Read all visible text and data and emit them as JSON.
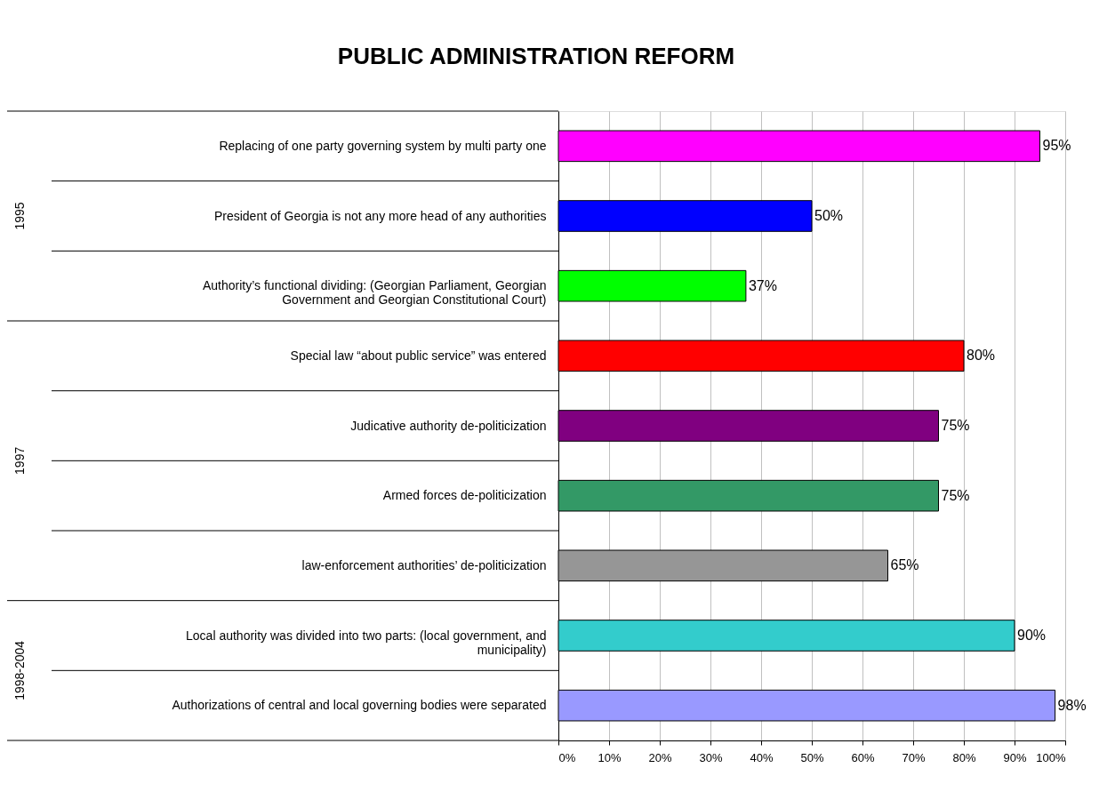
{
  "chart_data": {
    "type": "bar",
    "orientation": "horizontal",
    "title": "PUBLIC ADMINISTRATION REFORM",
    "categories": [
      "Replacing of one party governing system by multi party one",
      "President of Georgia is not any more head of any authorities",
      "Authority’s functional dividing: (Georgian Parliament, Georgian Government and Georgian Constitutional Court)",
      "Special law “about public service” was entered",
      "Judicative authority de-politicization",
      "Armed forces de-politicization",
      "law-enforcement authorities’ de-politicization",
      "Local authority was divided into two parts: (local government, and municipality)",
      "Authorizations of central and local governing bodies were separated"
    ],
    "values": [
      95,
      50,
      37,
      80,
      75,
      75,
      65,
      90,
      98
    ],
    "value_labels": [
      "95%",
      "50%",
      "37%",
      "80%",
      "75%",
      "75%",
      "65%",
      "90%",
      "98%"
    ],
    "colors": [
      "#ff00ff",
      "#0000ff",
      "#00ff00",
      "#ff0000",
      "#800080",
      "#339966",
      "#969696",
      "#33cccc",
      "#9999ff"
    ],
    "xlim": [
      0,
      100
    ],
    "xticks": [
      {
        "value": 0,
        "label": "0%"
      },
      {
        "value": 10,
        "label": "10%"
      },
      {
        "value": 20,
        "label": "20%"
      },
      {
        "value": 30,
        "label": "30%"
      },
      {
        "value": 40,
        "label": "40%"
      },
      {
        "value": 50,
        "label": "50%"
      },
      {
        "value": 60,
        "label": "60%"
      },
      {
        "value": 70,
        "label": "70%"
      },
      {
        "value": 80,
        "label": "80%"
      },
      {
        "value": 90,
        "label": "90%"
      },
      {
        "value": 100,
        "label": "100%"
      }
    ],
    "grid": "x",
    "annotations": [
      "1995",
      "1997",
      "1998-2004"
    ]
  }
}
